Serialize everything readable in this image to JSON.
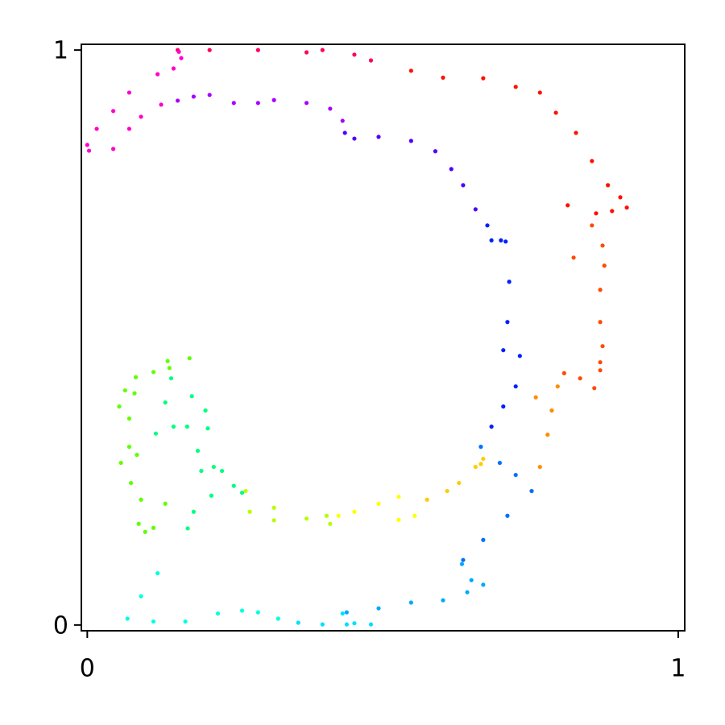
{
  "chart_data": {
    "type": "scatter",
    "xlim": [
      -0.01,
      1.011
    ],
    "ylim": [
      -0.01,
      1.01
    ],
    "xticks": [
      0,
      1
    ],
    "yticks": [
      0,
      1
    ],
    "series": [
      {
        "color": "#ff0060",
        "x": [
          0.153,
          0.207,
          0.289,
          0.371,
          0.398,
          0.452,
          0.48
        ],
        "values": [
          1.0,
          1.0,
          1.0,
          0.996,
          1.0,
          0.992,
          0.982
        ]
      },
      {
        "color": "#ff1000",
        "x": [
          0.548,
          0.602,
          0.67,
          0.725,
          0.766,
          0.793,
          0.827,
          0.854,
          0.881,
          0.902,
          0.913,
          0.888,
          0.861,
          0.813
        ],
        "values": [
          0.964,
          0.952,
          0.951,
          0.936,
          0.926,
          0.891,
          0.856,
          0.807,
          0.765,
          0.744,
          0.726,
          0.72,
          0.716,
          0.73
        ]
      },
      {
        "color": "#ff4a00",
        "x": [
          0.854,
          0.872,
          0.875,
          0.868,
          0.868,
          0.872,
          0.868,
          0.858,
          0.834,
          0.807,
          0.823,
          0.868
        ],
        "values": [
          0.695,
          0.66,
          0.625,
          0.583,
          0.527,
          0.485,
          0.443,
          0.412,
          0.429,
          0.438,
          0.639,
          0.457
        ]
      },
      {
        "color": "#ff8c00",
        "x": [
          0.796,
          0.786,
          0.779,
          0.766,
          0.752,
          0.759
        ],
        "values": [
          0.415,
          0.373,
          0.331,
          0.275,
          0.233,
          0.396
        ]
      },
      {
        "color": "#ffcc00",
        "x": [
          0.67,
          0.657,
          0.629,
          0.609,
          0.575,
          0.666
        ],
        "values": [
          0.289,
          0.275,
          0.247,
          0.233,
          0.218,
          0.28
        ]
      },
      {
        "color": "#ffff00",
        "x": [
          0.554,
          0.527,
          0.493,
          0.452,
          0.425,
          0.527
        ],
        "values": [
          0.19,
          0.223,
          0.211,
          0.197,
          0.19,
          0.183
        ]
      },
      {
        "color": "#b4ff00",
        "x": [
          0.411,
          0.405,
          0.371,
          0.316,
          0.275,
          0.268,
          0.316
        ],
        "values": [
          0.176,
          0.19,
          0.185,
          0.182,
          0.197,
          0.233,
          0.204
        ]
      },
      {
        "color": "#60ff00",
        "x": [
          0.098,
          0.087,
          0.091,
          0.074,
          0.057,
          0.071,
          0.071,
          0.054,
          0.064,
          0.082,
          0.112,
          0.139,
          0.173,
          0.136,
          0.08,
          0.084,
          0.112,
          0.132
        ],
        "values": [
          0.162,
          0.176,
          0.218,
          0.247,
          0.282,
          0.31,
          0.359,
          0.38,
          0.408,
          0.431,
          0.44,
          0.447,
          0.464,
          0.459,
          0.403,
          0.296,
          0.169,
          0.211
        ]
      },
      {
        "color": "#00ff80",
        "x": [
          0.142,
          0.132,
          0.146,
          0.169,
          0.187,
          0.193,
          0.214,
          0.228,
          0.177,
          0.2,
          0.204,
          0.116,
          0.18,
          0.17,
          0.21,
          0.248,
          0.262
        ],
        "values": [
          0.429,
          0.387,
          0.345,
          0.345,
          0.303,
          0.268,
          0.275,
          0.268,
          0.398,
          0.373,
          0.342,
          0.333,
          0.197,
          0.168,
          0.225,
          0.242,
          0.23
        ]
      },
      {
        "color": "#00ffe0",
        "x": [
          0.119,
          0.091,
          0.068,
          0.112,
          0.166,
          0.221,
          0.262,
          0.289,
          0.323
        ],
        "values": [
          0.09,
          0.05,
          0.011,
          0.006,
          0.006,
          0.02,
          0.025,
          0.022,
          0.011
        ]
      },
      {
        "color": "#00e0ff",
        "x": [
          0.357,
          0.398,
          0.439,
          0.432,
          0.452,
          0.48
        ],
        "values": [
          0.004,
          0.001,
          0.001,
          0.02,
          0.003,
          0.001
        ]
      },
      {
        "color": "#00a8ff",
        "x": [
          0.439,
          0.493,
          0.548,
          0.602,
          0.643,
          0.67,
          0.65,
          0.634
        ],
        "values": [
          0.022,
          0.029,
          0.039,
          0.043,
          0.057,
          0.07,
          0.078,
          0.106
        ]
      },
      {
        "color": "#0070ff",
        "x": [
          0.636,
          0.67,
          0.711,
          0.752,
          0.725,
          0.698,
          0.666
        ],
        "values": [
          0.113,
          0.148,
          0.19,
          0.233,
          0.261,
          0.282,
          0.31
        ]
      },
      {
        "color": "#0020ff",
        "x": [
          0.684,
          0.704,
          0.725,
          0.732,
          0.704,
          0.711,
          0.714,
          0.708,
          0.7,
          0.684,
          0.677
        ],
        "values": [
          0.345,
          0.38,
          0.415,
          0.468,
          0.478,
          0.527,
          0.597,
          0.667,
          0.669,
          0.669,
          0.695
        ]
      },
      {
        "color": "#5000ff",
        "x": [
          0.657,
          0.636,
          0.616,
          0.589,
          0.548,
          0.493,
          0.452,
          0.436
        ],
        "values": [
          0.723,
          0.765,
          0.793,
          0.824,
          0.842,
          0.849,
          0.846,
          0.856
        ]
      },
      {
        "color": "#a800ff",
        "x": [
          0.432,
          0.411,
          0.371,
          0.316,
          0.289,
          0.248,
          0.207,
          0.18,
          0.153
        ],
        "values": [
          0.877,
          0.898,
          0.908,
          0.913,
          0.908,
          0.908,
          0.922,
          0.919,
          0.912
        ]
      },
      {
        "color": "#ff00c8",
        "x": [
          0.125,
          0.091,
          0.071,
          0.044,
          0.003,
          0.0,
          0.016,
          0.044,
          0.071,
          0.119,
          0.146,
          0.159,
          0.155
        ],
        "values": [
          0.905,
          0.884,
          0.863,
          0.828,
          0.825,
          0.835,
          0.863,
          0.894,
          0.926,
          0.958,
          0.968,
          0.986,
          0.997
        ]
      }
    ]
  }
}
